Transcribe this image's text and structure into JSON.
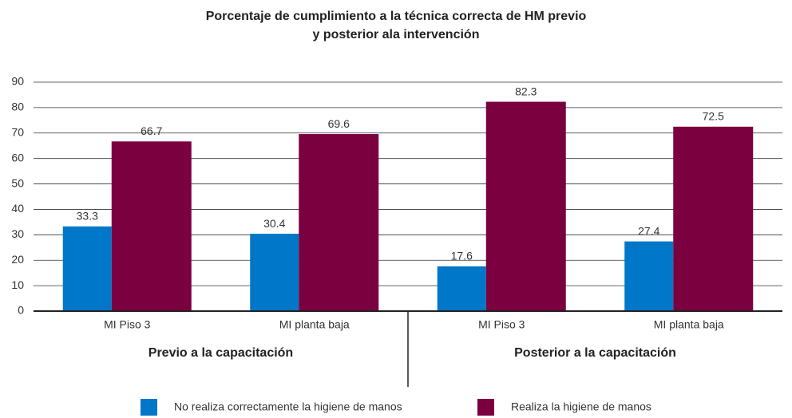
{
  "chart_data": {
    "type": "bar",
    "title": [
      "Porcentaje de cumplimiento a la técnica correcta de HM previo",
      "y posterior ala intervención"
    ],
    "categories": [
      "MI Piso 3",
      "MI planta baja",
      "MI Piso 3",
      "MI planta baja"
    ],
    "groups": [
      "Previo a la capacitación",
      "Posterior a la capacitación"
    ],
    "series": [
      {
        "name": "No realiza correctamente la higiene de manos",
        "color": "#0077c8",
        "values": [
          33.3,
          30.4,
          17.6,
          27.4
        ]
      },
      {
        "name": "Realiza la higiene de manos",
        "color": "#7a0040",
        "values": [
          66.7,
          69.6,
          82.3,
          72.5
        ]
      }
    ],
    "ylim": [
      0,
      90
    ],
    "yticks": [
      0,
      10,
      20,
      30,
      40,
      50,
      60,
      70,
      80,
      90
    ],
    "grid": true,
    "legend": "bottom"
  }
}
